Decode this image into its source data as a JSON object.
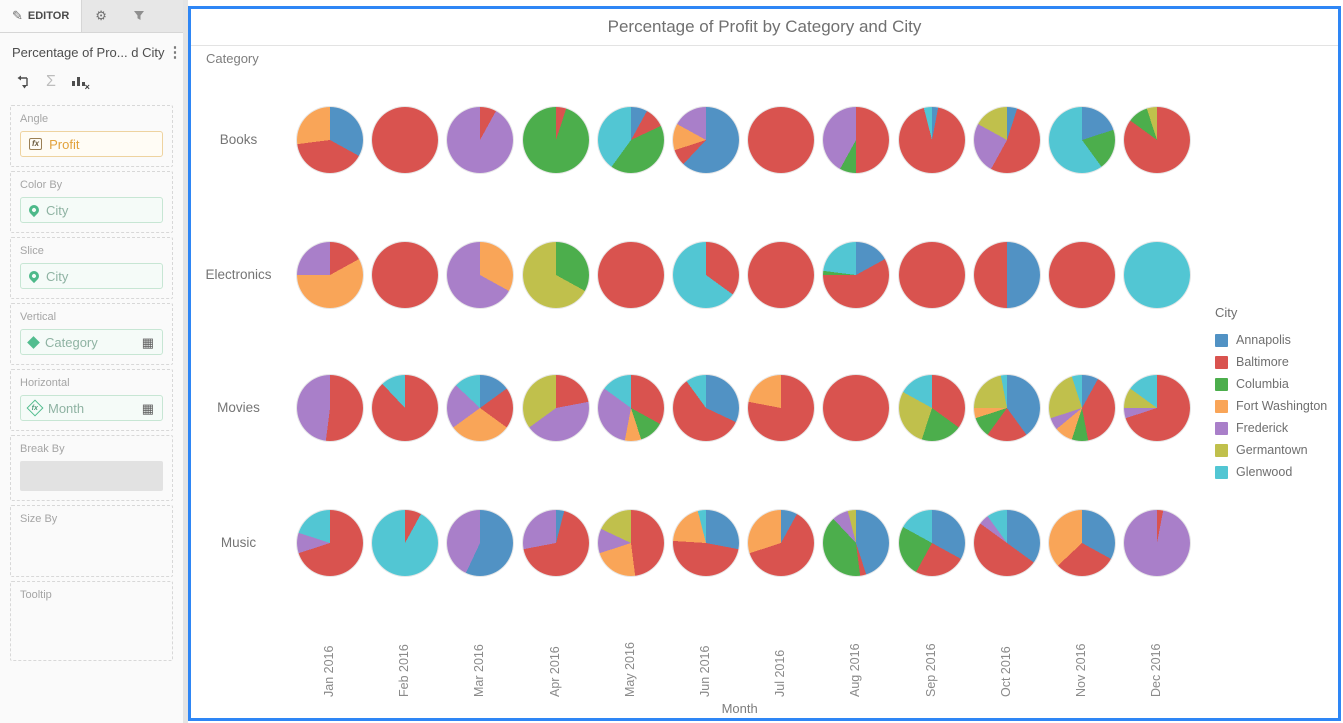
{
  "sidebar": {
    "tabs": [
      {
        "label": "EDITOR",
        "icon": "pencil"
      },
      {
        "icon": "gear"
      },
      {
        "icon": "funnel"
      }
    ],
    "title": "Percentage of Pro... d City",
    "toolbar_icons": [
      "pivot-swap",
      "sigma",
      "bar-chart-x"
    ],
    "fields": [
      {
        "label": "Angle",
        "value": "Profit",
        "icon": "fx"
      },
      {
        "label": "Color By",
        "value": "City",
        "icon": "geo-pin"
      },
      {
        "label": "Slice",
        "value": "City",
        "icon": "geo-pin"
      },
      {
        "label": "Vertical",
        "value": "Category",
        "icon": "attribute-diamond",
        "right_icon": "grid"
      },
      {
        "label": "Horizontal",
        "value": "Month",
        "icon": "derived-diamond-fx",
        "right_icon": "grid"
      },
      {
        "label": "Break By",
        "value": ""
      },
      {
        "label": "Size By",
        "value": ""
      },
      {
        "label": "Tooltip",
        "value": ""
      }
    ]
  },
  "chart_data": {
    "type": "pie",
    "layout": "grid-of-pies",
    "title": "Percentage of Profit by Category and City",
    "row_axis_label": "Category",
    "col_axis_label": "Month",
    "legend_title": "City",
    "legend_position": "right",
    "rows": [
      "Books",
      "Electronics",
      "Movies",
      "Music"
    ],
    "columns": [
      "Jan 2016",
      "Feb 2016",
      "Mar 2016",
      "Apr 2016",
      "May 2016",
      "Jun 2016",
      "Jul 2016",
      "Aug 2016",
      "Sep 2016",
      "Oct 2016",
      "Nov 2016",
      "Dec 2016"
    ],
    "cities": [
      "Annapolis",
      "Baltimore",
      "Columbia",
      "Fort Washington",
      "Frederick",
      "Germantown",
      "Glenwood"
    ],
    "colors": {
      "Annapolis": "#5192c4",
      "Baltimore": "#d9534f",
      "Columbia": "#4cae4c",
      "Fort Washington": "#f9a558",
      "Frederick": "#a97fc9",
      "Germantown": "#c0c04c",
      "Glenwood": "#52c6d3"
    },
    "pies_note": "percent of profit per city; order matches cities[]",
    "pies": {
      "Books": [
        [
          33,
          40,
          0,
          27,
          0,
          0,
          0
        ],
        [
          0,
          100,
          0,
          0,
          0,
          0,
          0
        ],
        [
          0,
          8,
          0,
          0,
          92,
          0,
          0
        ],
        [
          0,
          5,
          95,
          0,
          0,
          0,
          0
        ],
        [
          8,
          10,
          42,
          0,
          0,
          0,
          40
        ],
        [
          62,
          8,
          0,
          13,
          17,
          0,
          0
        ],
        [
          0,
          100,
          0,
          0,
          0,
          0,
          0
        ],
        [
          0,
          50,
          8,
          0,
          42,
          0,
          0
        ],
        [
          3,
          93,
          0,
          0,
          0,
          0,
          4
        ],
        [
          5,
          53,
          0,
          0,
          25,
          17,
          0
        ],
        [
          20,
          0,
          20,
          0,
          0,
          0,
          60
        ],
        [
          0,
          85,
          10,
          0,
          0,
          5,
          0
        ]
      ],
      "Electronics": [
        [
          0,
          17,
          0,
          58,
          25,
          0,
          0
        ],
        [
          0,
          100,
          0,
          0,
          0,
          0,
          0
        ],
        [
          0,
          0,
          0,
          33,
          67,
          0,
          0
        ],
        [
          0,
          0,
          33,
          0,
          0,
          67,
          0
        ],
        [
          0,
          100,
          0,
          0,
          0,
          0,
          0
        ],
        [
          0,
          35,
          0,
          0,
          0,
          0,
          65
        ],
        [
          0,
          100,
          0,
          0,
          0,
          0,
          0
        ],
        [
          17,
          58,
          2,
          0,
          0,
          0,
          23
        ],
        [
          0,
          100,
          0,
          0,
          0,
          0,
          0
        ],
        [
          50,
          50,
          0,
          0,
          0,
          0,
          0
        ],
        [
          0,
          100,
          0,
          0,
          0,
          0,
          0
        ],
        [
          0,
          0,
          0,
          0,
          0,
          0,
          100
        ]
      ],
      "Movies": [
        [
          0,
          52,
          0,
          0,
          48,
          0,
          0
        ],
        [
          0,
          88,
          0,
          0,
          0,
          0,
          12
        ],
        [
          15,
          20,
          0,
          30,
          22,
          0,
          13
        ],
        [
          0,
          22,
          0,
          0,
          43,
          35,
          0
        ],
        [
          0,
          33,
          12,
          8,
          32,
          0,
          15
        ],
        [
          32,
          58,
          0,
          0,
          0,
          0,
          10
        ],
        [
          0,
          78,
          0,
          22,
          0,
          0,
          0
        ],
        [
          0,
          100,
          0,
          0,
          0,
          0,
          0
        ],
        [
          0,
          35,
          20,
          0,
          0,
          28,
          17
        ],
        [
          40,
          20,
          10,
          5,
          0,
          22,
          3
        ],
        [
          8,
          39,
          8,
          9,
          6,
          25,
          5
        ],
        [
          0,
          70,
          0,
          0,
          5,
          10,
          15
        ]
      ],
      "Music": [
        [
          0,
          70,
          0,
          0,
          10,
          0,
          20
        ],
        [
          0,
          8,
          0,
          0,
          0,
          0,
          92
        ],
        [
          57,
          0,
          0,
          0,
          43,
          0,
          0
        ],
        [
          4,
          68,
          0,
          0,
          28,
          0,
          0
        ],
        [
          0,
          48,
          0,
          22,
          12,
          18,
          0
        ],
        [
          28,
          48,
          0,
          20,
          0,
          0,
          4
        ],
        [
          8,
          62,
          0,
          30,
          0,
          0,
          0
        ],
        [
          45,
          3,
          40,
          0,
          8,
          4,
          0
        ],
        [
          33,
          25,
          25,
          0,
          0,
          0,
          17
        ],
        [
          35,
          50,
          0,
          0,
          5,
          0,
          10
        ],
        [
          33,
          30,
          0,
          37,
          0,
          0,
          0
        ],
        [
          0,
          3,
          0,
          0,
          97,
          0,
          0
        ]
      ]
    }
  }
}
